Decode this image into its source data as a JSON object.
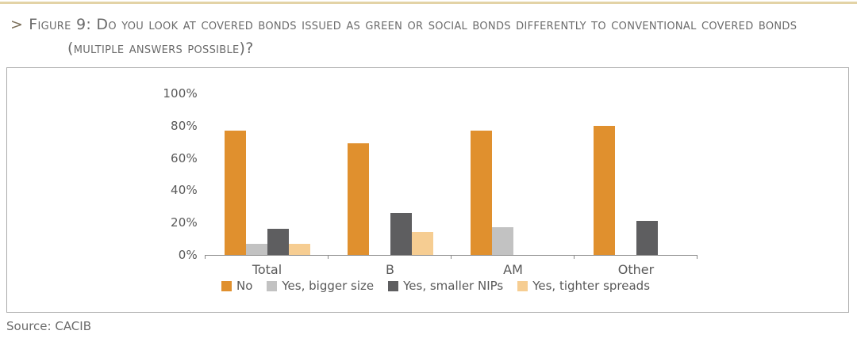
{
  "header": {
    "marker": ">",
    "title_line1": "Figure 9: Do you look at covered bonds issued as green or social bonds differently to conventional covered bonds",
    "title_line2": "(multiple answers possible)?"
  },
  "chart_data": {
    "type": "bar",
    "title": "Do you look at covered bonds issued as green or social bonds differently to conventional covered bonds (multiple answers possible)?",
    "categories": [
      "Total",
      "B",
      "AM",
      "Other"
    ],
    "series": [
      {
        "name": "No",
        "color": "#e0902e",
        "values": [
          77,
          69,
          77,
          80
        ]
      },
      {
        "name": "Yes, bigger size",
        "color": "#c2c2c2",
        "values": [
          7,
          0,
          17,
          0
        ]
      },
      {
        "name": "Yes, smaller NIPs",
        "color": "#5e5e60",
        "values": [
          16,
          26,
          0,
          21
        ]
      },
      {
        "name": "Yes, tighter spreads",
        "color": "#f6cd92",
        "values": [
          7,
          14,
          0,
          0
        ]
      }
    ],
    "ylim": [
      0,
      100
    ],
    "ytick_labels": [
      "100%",
      "80%",
      "60%",
      "40%",
      "20%",
      "0%"
    ],
    "ylabel": "",
    "xlabel": "",
    "grid": false,
    "legend_position": "bottom"
  },
  "footer": {
    "source": "Source: CACIB"
  }
}
